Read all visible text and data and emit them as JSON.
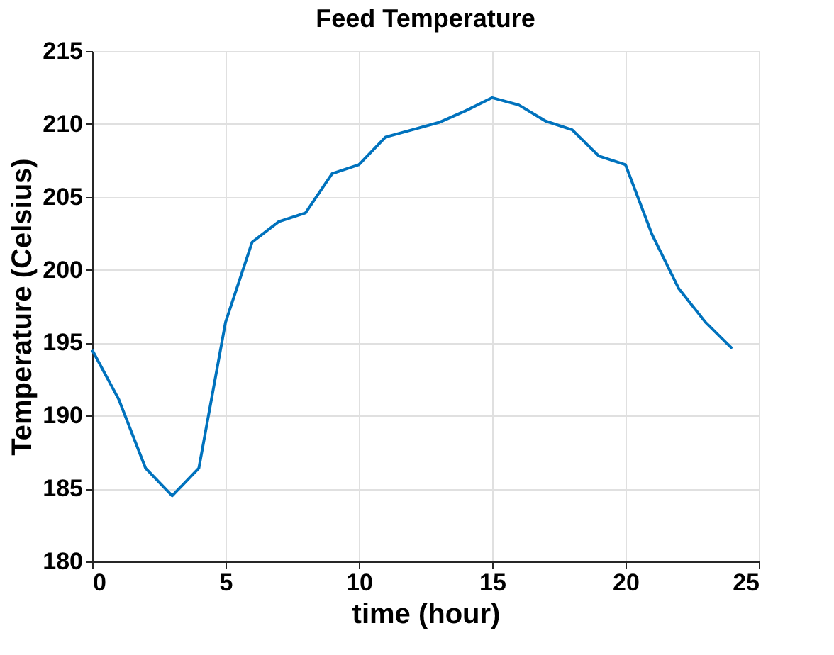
{
  "chart_data": {
    "type": "line",
    "title": "Feed Temperature",
    "xlabel": "time (hour)",
    "ylabel": "Temperature (Celsius)",
    "x": [
      0,
      1,
      2,
      3,
      4,
      5,
      6,
      7,
      8,
      9,
      10,
      11,
      12,
      13,
      14,
      15,
      16,
      17,
      18,
      19,
      20,
      21,
      22,
      23,
      24
    ],
    "series": [
      {
        "color": "#0072bd",
        "values": [
          194.5,
          191.1,
          186.4,
          184.5,
          186.4,
          196.4,
          201.9,
          203.3,
          203.9,
          206.6,
          207.2,
          209.1,
          209.6,
          210.1,
          210.9,
          211.8,
          211.3,
          210.2,
          209.6,
          207.8,
          207.2,
          202.4,
          198.7,
          196.4,
          194.6
        ]
      }
    ],
    "xlim": [
      0,
      25
    ],
    "xticks": [
      0,
      5,
      10,
      15,
      20,
      25
    ],
    "ylim": [
      180,
      215
    ],
    "yticks": [
      180,
      185,
      190,
      195,
      200,
      205,
      210,
      215
    ],
    "grid": true,
    "marker": "none",
    "line_style": "solid"
  }
}
